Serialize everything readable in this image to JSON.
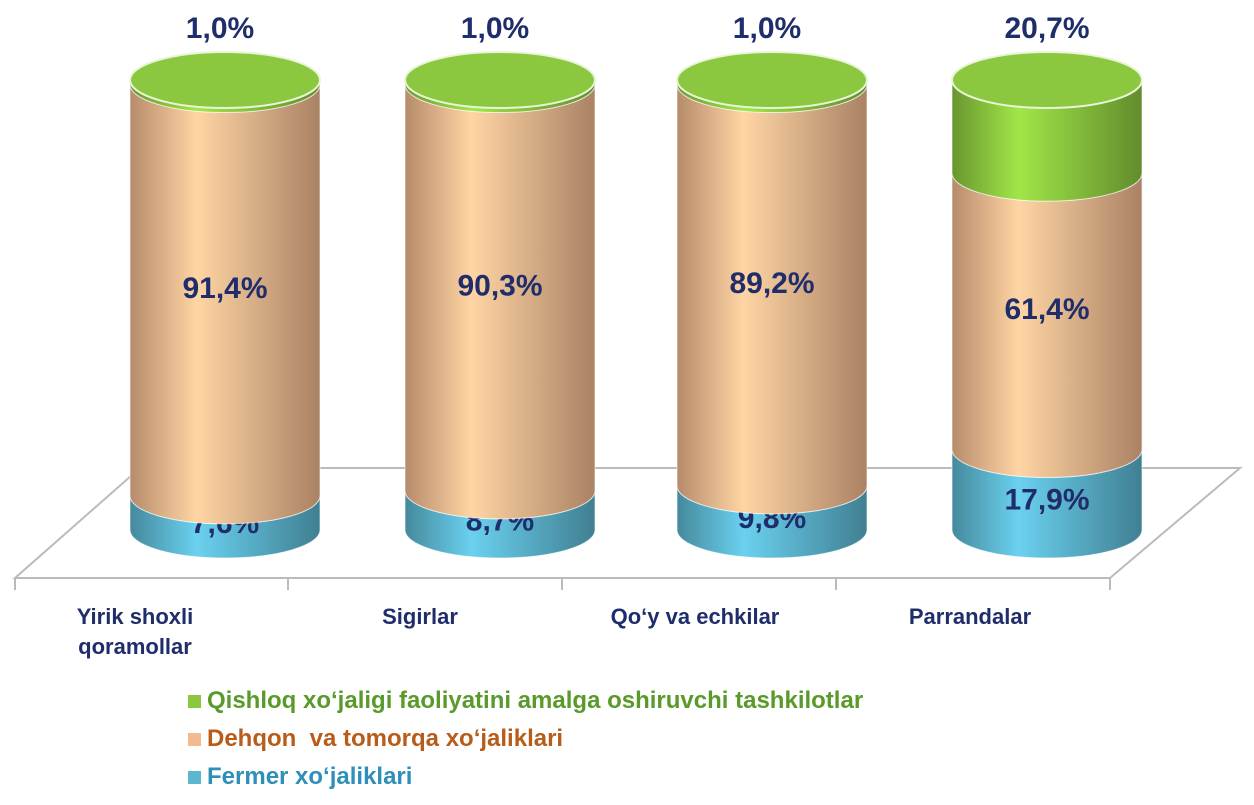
{
  "chart_data": {
    "type": "stacked-cylinder",
    "categories": [
      "Yirik shoxli qoramollar",
      "Sigirlar",
      "Qo‘y va echkilar",
      "Parrandalar"
    ],
    "series": [
      {
        "name": "Fermer xo‘jaliklari",
        "color": "#5cb6d0",
        "text_color": "#2e8fb8",
        "values": [
          7.6,
          8.7,
          9.8,
          17.9
        ],
        "value_labels": [
          "7,6%",
          "8,7%",
          "9,8%",
          "17,9%"
        ]
      },
      {
        "name": "Dehqon  va tomorqa xo‘jaliklari",
        "color": "#f3b98f",
        "text_color": "#b85c1a",
        "values": [
          91.4,
          90.3,
          89.2,
          61.4
        ],
        "value_labels": [
          "91,4%",
          "90,3%",
          "89,2%",
          "61,4%"
        ]
      },
      {
        "name": "Qishloq xo‘jaligi faoliyatini amalga oshiruvchi tashkilotlar",
        "color": "#8cc83f",
        "text_color": "#5a9a2a",
        "values": [
          1.0,
          1.0,
          1.0,
          20.7
        ],
        "value_labels": [
          "1,0%",
          "1,0%",
          "1,0%",
          "20,7%"
        ]
      }
    ]
  }
}
